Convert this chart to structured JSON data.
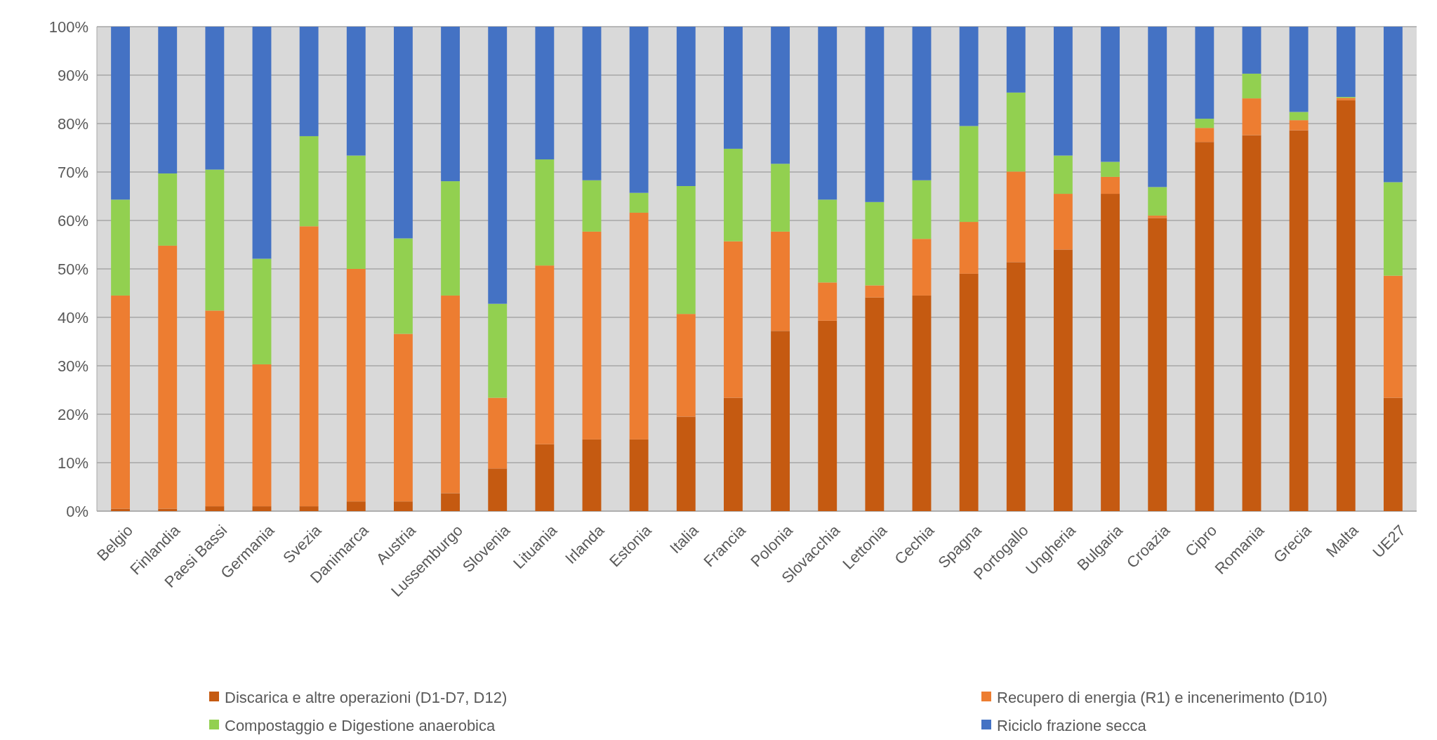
{
  "chart_data": {
    "type": "bar",
    "stacked": true,
    "categories": [
      "Belgio",
      "Finlandia",
      "Paesi Bassi",
      "Germania",
      "Svezia",
      "Danimarca",
      "Austria",
      "Lussemburgo",
      "Slovenia",
      "Lituania",
      "Irlanda",
      "Estonia",
      "Italia",
      "Francia",
      "Polonia",
      "Slovacchia",
      "Lettonia",
      "Cechia",
      "Spagna",
      "Portogallo",
      "Ungheria",
      "Bulgaria",
      "Croazia",
      "Cipro",
      "Romania",
      "Grecia",
      "Malta",
      "UE27"
    ],
    "series": [
      {
        "name": "Discarica e altre operazioni (D1-D7, D12)",
        "color": "#c55a11",
        "values": [
          0.5,
          0.5,
          1,
          1,
          1,
          2,
          2,
          3.7,
          8.8,
          13.8,
          14.8,
          14.8,
          19.5,
          23.4,
          37.2,
          39.3,
          44.1,
          44.5,
          49,
          51.4,
          54,
          65.5,
          60.5,
          76.2,
          77.6,
          78.6,
          84.8,
          23.4
        ]
      },
      {
        "name": "Recupero di energia (R1) e incenerimento (D10)",
        "color": "#ed7d31",
        "values": [
          44,
          54.3,
          40.4,
          29.3,
          57.8,
          48,
          34.6,
          40.8,
          14.6,
          36.9,
          42.9,
          46.8,
          21.2,
          32.3,
          20.5,
          7.9,
          2.5,
          11.7,
          10.7,
          18.7,
          11.5,
          3.5,
          0.5,
          2.9,
          7.6,
          2.1,
          0.5,
          25.2
        ]
      },
      {
        "name": "Compostaggio e Digestione anaerobica",
        "color": "#92d050",
        "values": [
          19.8,
          14.9,
          29.1,
          21.8,
          18.6,
          23.4,
          19.7,
          23.6,
          19.4,
          21.9,
          10.6,
          4.1,
          26.4,
          19.1,
          14,
          17.1,
          17.2,
          12.1,
          19.8,
          16.3,
          7.9,
          3.1,
          5.9,
          1.9,
          5.1,
          1.7,
          0.2,
          19.3
        ]
      },
      {
        "name": "Riciclo frazione secca",
        "color": "#4472c4",
        "values": [
          35.7,
          30.3,
          29.5,
          47.9,
          22.6,
          26.6,
          43.7,
          31.9,
          57.2,
          27.4,
          31.7,
          34.3,
          32.9,
          25.2,
          28.3,
          35.7,
          36.2,
          31.7,
          20.5,
          13.6,
          26.6,
          27.9,
          33.1,
          19,
          9.7,
          17.6,
          14.5,
          32.1
        ]
      }
    ],
    "ylim": [
      0,
      100
    ],
    "yticks": [
      {
        "value": 0,
        "label": "0%"
      },
      {
        "value": 10,
        "label": "10%"
      },
      {
        "value": 20,
        "label": "20%"
      },
      {
        "value": 30,
        "label": "30%"
      },
      {
        "value": 40,
        "label": "40%"
      },
      {
        "value": 50,
        "label": "50%"
      },
      {
        "value": 60,
        "label": "60%"
      },
      {
        "value": 70,
        "label": "70%"
      },
      {
        "value": 80,
        "label": "80%"
      },
      {
        "value": 90,
        "label": "90%"
      },
      {
        "value": 100,
        "label": "100%"
      }
    ],
    "grid": "y",
    "legend": "bottom"
  }
}
